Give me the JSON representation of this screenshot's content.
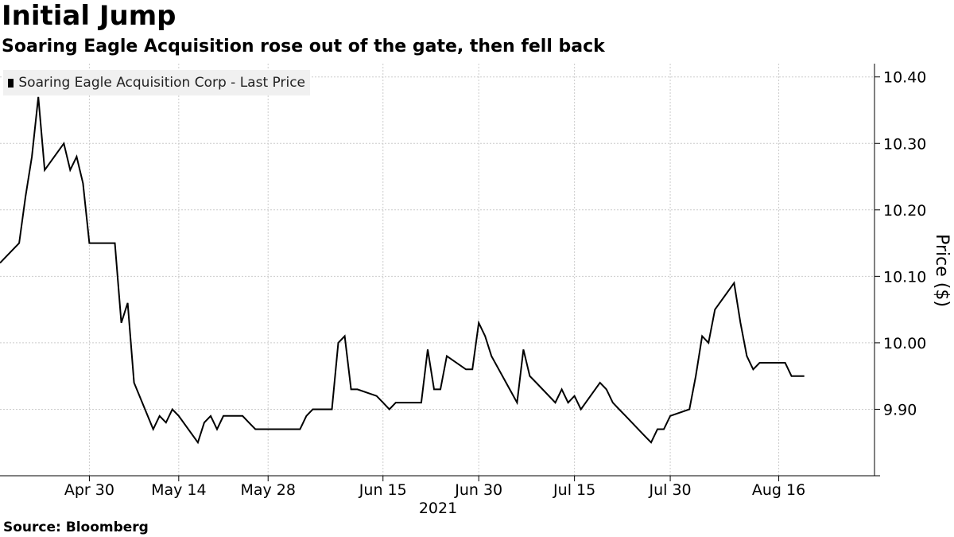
{
  "header": {
    "title": "Initial Jump",
    "subtitle": "Soaring Eagle Acquisition rose out of the gate, then fell back"
  },
  "footer": {
    "source": "Source: Bloomberg"
  },
  "colors": {
    "line": "#000000",
    "grid": "#cccccc",
    "legend_bg": "#f0f0f0"
  },
  "chart_data": {
    "type": "line",
    "title": "Initial Jump",
    "subtitle": "Soaring Eagle Acquisition rose out of the gate, then fell back",
    "ylabel": "Price ($)",
    "xlabel": "2021",
    "ylim": [
      9.8,
      10.42
    ],
    "yticks": [
      9.9,
      10.0,
      10.1,
      10.2,
      10.3,
      10.4
    ],
    "ytick_labels": [
      "9.90",
      "10.00",
      "10.10",
      "10.20",
      "10.30",
      "10.40"
    ],
    "xlim": [
      "2021-04-16",
      "2021-08-31"
    ],
    "xticks": [
      "2021-04-30",
      "2021-05-14",
      "2021-05-28",
      "2021-06-15",
      "2021-06-30",
      "2021-07-15",
      "2021-07-30",
      "2021-08-16"
    ],
    "xtick_labels": [
      "Apr 30",
      "May 14",
      "May 28",
      "Jun 15",
      "Jun 30",
      "Jul 15",
      "Jul 30",
      "Aug 16"
    ],
    "x_axis_year": "2021",
    "grid": true,
    "legend": {
      "position": "top-left",
      "entries": [
        "Soaring Eagle Acquisition Corp - Last Price"
      ]
    },
    "series": [
      {
        "name": "Soaring Eagle Acquisition Corp - Last Price",
        "x": [
          "2021-04-16",
          "2021-04-19",
          "2021-04-20",
          "2021-04-21",
          "2021-04-22",
          "2021-04-23",
          "2021-04-26",
          "2021-04-27",
          "2021-04-28",
          "2021-04-29",
          "2021-04-30",
          "2021-05-03",
          "2021-05-04",
          "2021-05-05",
          "2021-05-06",
          "2021-05-07",
          "2021-05-10",
          "2021-05-11",
          "2021-05-12",
          "2021-05-13",
          "2021-05-14",
          "2021-05-17",
          "2021-05-18",
          "2021-05-19",
          "2021-05-20",
          "2021-05-21",
          "2021-05-24",
          "2021-05-25",
          "2021-05-26",
          "2021-05-27",
          "2021-05-28",
          "2021-06-01",
          "2021-06-02",
          "2021-06-03",
          "2021-06-04",
          "2021-06-07",
          "2021-06-08",
          "2021-06-09",
          "2021-06-10",
          "2021-06-11",
          "2021-06-14",
          "2021-06-15",
          "2021-06-16",
          "2021-06-17",
          "2021-06-18",
          "2021-06-21",
          "2021-06-22",
          "2021-06-23",
          "2021-06-24",
          "2021-06-25",
          "2021-06-28",
          "2021-06-29",
          "2021-06-30",
          "2021-07-01",
          "2021-07-02",
          "2021-07-06",
          "2021-07-07",
          "2021-07-08",
          "2021-07-09",
          "2021-07-12",
          "2021-07-13",
          "2021-07-14",
          "2021-07-15",
          "2021-07-16",
          "2021-07-19",
          "2021-07-20",
          "2021-07-21",
          "2021-07-22",
          "2021-07-23",
          "2021-07-26",
          "2021-07-27",
          "2021-07-28",
          "2021-07-29",
          "2021-07-30",
          "2021-08-02",
          "2021-08-03",
          "2021-08-04",
          "2021-08-05",
          "2021-08-06",
          "2021-08-09",
          "2021-08-10",
          "2021-08-11",
          "2021-08-12",
          "2021-08-13",
          "2021-08-16",
          "2021-08-17",
          "2021-08-18",
          "2021-08-19",
          "2021-08-20",
          "2021-08-23",
          "2021-08-24",
          "2021-08-25"
        ],
        "values": [
          10.12,
          10.15,
          10.22,
          10.28,
          10.37,
          10.26,
          10.3,
          10.26,
          10.28,
          10.24,
          10.15,
          10.15,
          10.15,
          10.03,
          10.06,
          9.94,
          9.87,
          9.89,
          9.88,
          9.9,
          9.89,
          9.85,
          9.88,
          9.89,
          9.87,
          9.89,
          9.89,
          9.88,
          9.87,
          9.87,
          9.87,
          9.87,
          9.87,
          9.89,
          9.9,
          9.9,
          10.0,
          10.01,
          9.93,
          9.93,
          9.92,
          9.91,
          9.9,
          9.91,
          9.91,
          9.91,
          9.99,
          9.93,
          9.93,
          9.98,
          9.96,
          9.96,
          10.03,
          10.01,
          9.98,
          9.91,
          9.99,
          9.95,
          9.94,
          9.91,
          9.93,
          9.91,
          9.92,
          9.9,
          9.94,
          9.93,
          9.91,
          9.9,
          9.89,
          9.86,
          9.85,
          9.87,
          9.87,
          9.89,
          9.9,
          9.95,
          10.01,
          10.0,
          10.05,
          10.09,
          10.03,
          9.98,
          9.96,
          9.97,
          9.97,
          9.97,
          9.95,
          9.95,
          9.95,
          null,
          null,
          null
        ]
      }
    ]
  }
}
